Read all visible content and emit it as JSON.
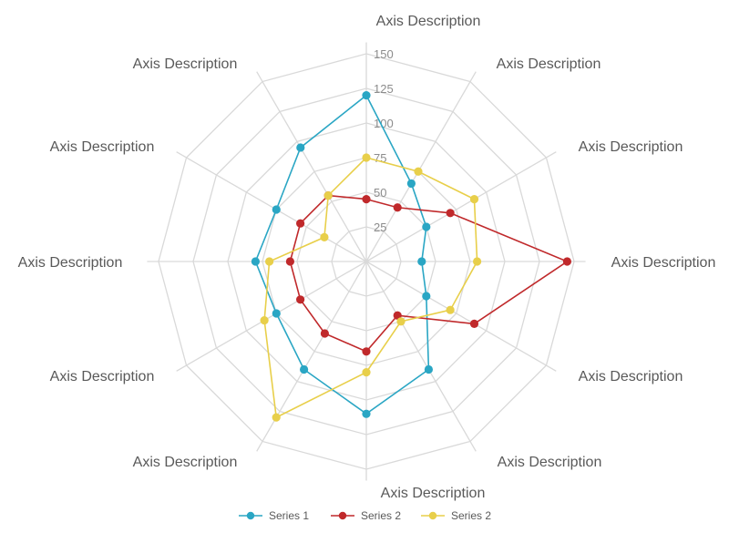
{
  "chart_data": {
    "type": "radar",
    "axes": [
      "Axis Description",
      "Axis Description",
      "Axis Description",
      "Axis Description",
      "Axis Description",
      "Axis Description",
      "Axis Description",
      "Axis Description",
      "Axis Description",
      "Axis Description",
      "Axis Description",
      "Axis Description"
    ],
    "rlim": [
      0,
      150
    ],
    "ticks": [
      25,
      50,
      75,
      100,
      125,
      150
    ],
    "tick_labels": [
      "25",
      "50",
      "75",
      "100",
      "125",
      "150"
    ],
    "grid": true,
    "legend_position": "bottom",
    "series": [
      {
        "name": "Series 1",
        "color": "#2aa6c4",
        "values": [
          120,
          65,
          50,
          40,
          50,
          90,
          110,
          90,
          75,
          80,
          75,
          95
        ]
      },
      {
        "name": "Series 2",
        "color": "#c0292b",
        "values": [
          45,
          45,
          70,
          145,
          90,
          45,
          65,
          60,
          55,
          55,
          55,
          55
        ]
      },
      {
        "name": "Series 2",
        "color": "#e8cf4a",
        "values": [
          75,
          75,
          90,
          80,
          70,
          50,
          80,
          130,
          85,
          70,
          35,
          55
        ]
      }
    ]
  }
}
